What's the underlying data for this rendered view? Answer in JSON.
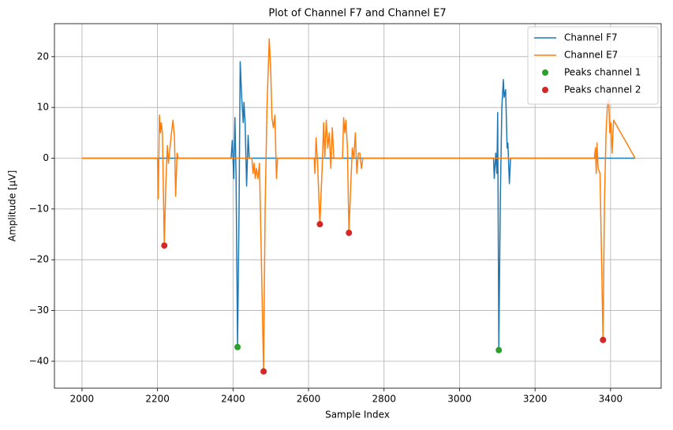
{
  "chart_data": {
    "type": "line",
    "title": "Plot of Channel F7 and Channel E7",
    "xlabel": "Sample Index",
    "ylabel": "Amplitude [µV]",
    "xlim": [
      1927,
      3534
    ],
    "ylim": [
      -45.3,
      26.5
    ],
    "xticks": [
      2000,
      2200,
      2400,
      2600,
      2800,
      3000,
      3200,
      3400
    ],
    "yticks": [
      {
        "value": -40,
        "label": "−40"
      },
      {
        "value": -30,
        "label": "−30"
      },
      {
        "value": -20,
        "label": "−20"
      },
      {
        "value": -10,
        "label": "−10"
      },
      0,
      10,
      20
    ],
    "grid": true,
    "legend": "upper right",
    "series": [
      {
        "name": "Channel F7",
        "color": "#1f77b4",
        "mode": "line",
        "x": [
          2000,
          2395,
          2398,
          2402,
          2405,
          2408,
          2412,
          2416,
          2419,
          2423,
          2427,
          2429,
          2432,
          2436,
          2440,
          2443,
          3090,
          3092,
          3096,
          3099,
          3101,
          3104,
          3108,
          3112,
          3116,
          3118,
          3122,
          3126,
          3128,
          3132,
          3135,
          3465
        ],
        "values": [
          0,
          0,
          3.5,
          -4,
          8,
          -3,
          -37.2,
          -10,
          19,
          12,
          7,
          11,
          7,
          -5.5,
          4.5,
          0,
          0,
          -4,
          1,
          -3,
          9,
          -37.8,
          -8,
          10,
          15.5,
          12,
          13.5,
          2,
          3,
          -5,
          0,
          0
        ]
      },
      {
        "name": "Channel E7",
        "color": "#ff7f0e",
        "mode": "line",
        "x": [
          2000,
          2200,
          2202,
          2205,
          2208,
          2210,
          2213,
          2218,
          2222,
          2226,
          2229,
          2233,
          2237,
          2241,
          2245,
          2248,
          2252,
          2255,
          2450,
          2453,
          2456,
          2459,
          2462,
          2466,
          2470,
          2481,
          2485,
          2490,
          2496,
          2500,
          2503,
          2507,
          2511,
          2515,
          2518,
          2615,
          2617,
          2620,
          2624,
          2630,
          2636,
          2640,
          2643,
          2647,
          2651,
          2655,
          2659,
          2663,
          2667,
          2690,
          2693,
          2696,
          2699,
          2703,
          2707,
          2712,
          2716,
          2720,
          2724,
          2728,
          2732,
          2736,
          2740,
          2744,
          3357,
          3360,
          3362,
          3364,
          3367,
          3372,
          3380,
          3384,
          3388,
          3392,
          3395,
          3398,
          3401,
          3404,
          3408,
          3465
        ],
        "values": [
          0,
          0,
          -8,
          8.5,
          5,
          7,
          5,
          -17.2,
          -5,
          2.5,
          -1,
          2,
          5,
          7.5,
          4,
          -7.5,
          1,
          0,
          0,
          -3,
          -1,
          -4,
          -2,
          -4,
          -1,
          -42,
          -10,
          10,
          23.5,
          17,
          8,
          6,
          8.5,
          -4,
          0,
          0,
          -3,
          4,
          -1,
          -13,
          -2,
          7,
          0,
          7.5,
          2,
          5,
          -2,
          6,
          0,
          0,
          8,
          5,
          7.5,
          2,
          -14.7,
          -5,
          2,
          0,
          5,
          -3,
          1,
          1,
          -2,
          0,
          0,
          2,
          -3,
          3,
          -2,
          -3,
          -35.8,
          -8,
          5,
          11,
          11.5,
          5,
          7,
          1,
          7.5,
          0
        ]
      },
      {
        "name": "Peaks channel 1",
        "color": "#2ca02c",
        "mode": "markers",
        "x": [
          2412,
          3104
        ],
        "values": [
          -37.2,
          -37.8
        ]
      },
      {
        "name": "Peaks channel 2",
        "color": "#d62728",
        "mode": "markers",
        "x": [
          2218,
          2481,
          2630,
          2707,
          3380
        ],
        "values": [
          -17.2,
          -42,
          -13,
          -14.7,
          -35.8
        ]
      }
    ]
  }
}
